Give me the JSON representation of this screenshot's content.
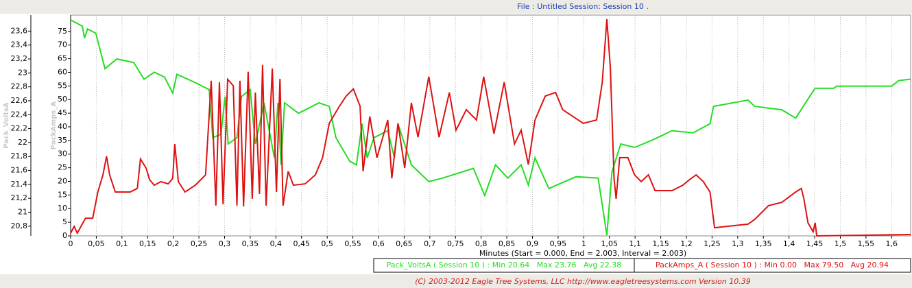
{
  "chart_data": {
    "type": "line",
    "title": "File : Untitled   Session: Session 10 .",
    "xlabel": "Minutes (Start = 0.000,  End = 2.003,  Interval =  2.003)",
    "ylabel": "Pack_VoltsA",
    "y2label": "PackAmps_A",
    "footer": "(C) 2003-2012 Eagle Tree Systems, LLC  http://www.eagletreesystems.com  Version 10.39",
    "grid": true,
    "xlim": [
      0,
      1.637
    ],
    "ylim": [
      20.66,
      23.83
    ],
    "y2lim": [
      0,
      81
    ],
    "xticks": [
      0,
      {
        "value": 0.05,
        "label": "0,05"
      },
      {
        "value": 0.1,
        "label": "0,1"
      },
      {
        "value": 0.15,
        "label": "0,15"
      },
      {
        "value": 0.2,
        "label": "0,2"
      },
      {
        "value": 0.25,
        "label": "0,25"
      },
      {
        "value": 0.3,
        "label": "0,3"
      },
      {
        "value": 0.35,
        "label": "0,35"
      },
      {
        "value": 0.4,
        "label": "0,4"
      },
      {
        "value": 0.45,
        "label": "0,45"
      },
      {
        "value": 0.5,
        "label": "0,5"
      },
      {
        "value": 0.55,
        "label": "0,55"
      },
      {
        "value": 0.6,
        "label": "0,6"
      },
      {
        "value": 0.65,
        "label": "0,65"
      },
      {
        "value": 0.7,
        "label": "0,7"
      },
      {
        "value": 0.75,
        "label": "0,75"
      },
      {
        "value": 0.8,
        "label": "0,8"
      },
      {
        "value": 0.85,
        "label": "0,85"
      },
      {
        "value": 0.9,
        "label": "0,9"
      },
      {
        "value": 0.95,
        "label": "0,95"
      },
      1,
      {
        "value": 1.05,
        "label": "1,05"
      },
      {
        "value": 1.1,
        "label": "1,1"
      },
      {
        "value": 1.15,
        "label": "1,15"
      },
      {
        "value": 1.2,
        "label": "1,2"
      },
      {
        "value": 1.25,
        "label": "1,25"
      },
      {
        "value": 1.3,
        "label": "1,3"
      },
      {
        "value": 1.35,
        "label": "1,35"
      },
      {
        "value": 1.4,
        "label": "1,4"
      },
      {
        "value": 1.45,
        "label": "1,45"
      },
      {
        "value": 1.5,
        "label": "1,5"
      },
      {
        "value": 1.55,
        "label": "1,55"
      },
      {
        "value": 1.6,
        "label": "1,6"
      }
    ],
    "yticks": [
      {
        "value": 20.8,
        "label": "20,8"
      },
      21,
      {
        "value": 21.2,
        "label": "21,2"
      },
      {
        "value": 21.4,
        "label": "21,4"
      },
      {
        "value": 21.6,
        "label": "21,6"
      },
      {
        "value": 21.8,
        "label": "21,8"
      },
      22,
      {
        "value": 22.2,
        "label": "22,2"
      },
      {
        "value": 22.4,
        "label": "22,4"
      },
      {
        "value": 22.6,
        "label": "22,6"
      },
      {
        "value": 22.8,
        "label": "22,8"
      },
      23,
      {
        "value": 23.2,
        "label": "23,2"
      },
      {
        "value": 23.4,
        "label": "23,4"
      },
      {
        "value": 23.6,
        "label": "23,6"
      }
    ],
    "y2ticks": [
      0,
      5,
      10,
      15,
      20,
      25,
      30,
      35,
      40,
      45,
      50,
      55,
      60,
      65,
      70,
      75
    ],
    "series": [
      {
        "name": "Pack_VoltsA ( Session 10 ) : Min 20.64   Max 23.76   Avg 22.38",
        "color": "#22dd22",
        "x": [
          0,
          0.023,
          0.027,
          0.033,
          0.049,
          0.067,
          0.09,
          0.123,
          0.143,
          0.163,
          0.183,
          0.199,
          0.207,
          0.243,
          0.27,
          0.277,
          0.293,
          0.301,
          0.307,
          0.324,
          0.333,
          0.35,
          0.36,
          0.377,
          0.397,
          0.404,
          0.41,
          0.417,
          0.444,
          0.484,
          0.504,
          0.517,
          0.544,
          0.557,
          0.568,
          0.578,
          0.591,
          0.618,
          0.631,
          0.638,
          0.664,
          0.698,
          0.725,
          0.785,
          0.807,
          0.828,
          0.852,
          0.878,
          0.892,
          0.905,
          0.932,
          0.985,
          1.028,
          1.045,
          1.055,
          1.072,
          1.099,
          1.132,
          1.172,
          1.213,
          1.246,
          1.253,
          1.32,
          1.333,
          1.386,
          1.413,
          1.44,
          1.451,
          1.487,
          1.493,
          1.6,
          1.614,
          1.637
        ],
        "values": [
          23.76,
          23.67,
          23.5,
          23.63,
          23.57,
          23.06,
          23.2,
          23.15,
          22.91,
          23.01,
          22.94,
          22.71,
          22.98,
          22.86,
          22.76,
          22.07,
          22.12,
          22.66,
          21.98,
          22.07,
          22.66,
          22.76,
          21.98,
          22.57,
          21.78,
          22.57,
          21.68,
          22.57,
          22.42,
          22.57,
          22.52,
          22.07,
          21.73,
          21.68,
          22.27,
          21.78,
          22.07,
          22.17,
          21.78,
          22.27,
          21.68,
          21.44,
          21.49,
          21.63,
          21.24,
          21.68,
          21.49,
          21.68,
          21.39,
          21.78,
          21.34,
          21.51,
          21.49,
          20.67,
          21.58,
          21.98,
          21.93,
          22.03,
          22.17,
          22.14,
          22.27,
          22.52,
          22.61,
          22.52,
          22.47,
          22.35,
          22.66,
          22.78,
          22.78,
          22.81,
          22.81,
          22.89,
          22.91
        ]
      },
      {
        "name": "PackAmps_A ( Session 10 ) : Min 0.00   Max 79.50   Avg 20.94",
        "color": "#dd1111",
        "axis": "y2",
        "x": [
          0,
          0.007,
          0.013,
          0.029,
          0.043,
          0.053,
          0.063,
          0.07,
          0.076,
          0.087,
          0.116,
          0.13,
          0.136,
          0.147,
          0.154,
          0.163,
          0.176,
          0.19,
          0.199,
          0.203,
          0.21,
          0.223,
          0.243,
          0.263,
          0.274,
          0.283,
          0.29,
          0.297,
          0.306,
          0.317,
          0.324,
          0.33,
          0.337,
          0.346,
          0.354,
          0.36,
          0.368,
          0.374,
          0.381,
          0.393,
          0.401,
          0.408,
          0.414,
          0.424,
          0.434,
          0.457,
          0.477,
          0.491,
          0.504,
          0.524,
          0.537,
          0.551,
          0.564,
          0.57,
          0.583,
          0.597,
          0.618,
          0.626,
          0.638,
          0.651,
          0.664,
          0.677,
          0.698,
          0.718,
          0.738,
          0.751,
          0.771,
          0.791,
          0.805,
          0.825,
          0.845,
          0.865,
          0.878,
          0.892,
          0.905,
          0.925,
          0.945,
          0.959,
          0.979,
          0.999,
          1.025,
          1.036,
          1.045,
          1.052,
          1.059,
          1.063,
          1.07,
          1.086,
          1.099,
          1.112,
          1.126,
          1.139,
          1.172,
          1.193,
          1.206,
          1.219,
          1.233,
          1.246,
          1.255,
          1.279,
          1.32,
          1.333,
          1.36,
          1.386,
          1.413,
          1.424,
          1.429,
          1.437,
          1.447,
          1.451,
          1.454,
          1.637
        ],
        "values": [
          1.0,
          3.5,
          1.0,
          6.5,
          6.5,
          16.1,
          22.4,
          29.2,
          22.4,
          16.1,
          16.1,
          17.4,
          28.2,
          24.9,
          20.6,
          18.6,
          19.9,
          19.1,
          21.1,
          33.7,
          19.9,
          16.1,
          18.6,
          22.4,
          56.9,
          11.1,
          56.4,
          11.6,
          57.4,
          55.1,
          11.1,
          56.9,
          10.8,
          60.2,
          13.6,
          52.6,
          15.4,
          62.7,
          11.1,
          61.4,
          16.1,
          57.6,
          11.1,
          23.7,
          18.6,
          19.1,
          22.4,
          28.7,
          41.3,
          47.6,
          51.3,
          53.9,
          47.6,
          23.7,
          43.8,
          28.7,
          42.5,
          21.1,
          41.3,
          24.9,
          48.8,
          36.2,
          58.4,
          36.2,
          52.6,
          38.8,
          46.3,
          42.5,
          58.4,
          37.5,
          56.4,
          33.7,
          38.8,
          26.2,
          42.5,
          51.3,
          52.6,
          46.3,
          43.8,
          41.3,
          42.5,
          56.4,
          79.5,
          61.4,
          21.1,
          13.6,
          28.7,
          28.7,
          22.4,
          19.9,
          22.4,
          16.6,
          16.6,
          18.6,
          20.6,
          22.4,
          19.9,
          16.1,
          3.0,
          3.5,
          4.3,
          6.0,
          11.1,
          12.3,
          16.1,
          17.4,
          13.6,
          4.8,
          1.5,
          4.8,
          0,
          0.5
        ]
      }
    ]
  }
}
